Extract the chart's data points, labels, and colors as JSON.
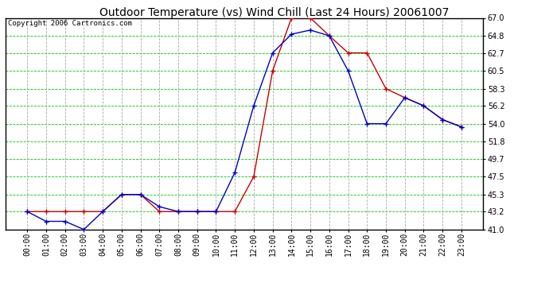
{
  "title": "Outdoor Temperature (vs) Wind Chill (Last 24 Hours) 20061007",
  "copyright": "Copyright 2006 Cartronics.com",
  "x_labels": [
    "00:00",
    "01:00",
    "02:00",
    "03:00",
    "04:00",
    "05:00",
    "06:00",
    "07:00",
    "08:00",
    "09:00",
    "10:00",
    "11:00",
    "12:00",
    "13:00",
    "14:00",
    "15:00",
    "16:00",
    "17:00",
    "18:00",
    "19:00",
    "20:00",
    "21:00",
    "22:00",
    "23:00"
  ],
  "temp": [
    43.2,
    43.2,
    43.2,
    43.2,
    43.2,
    45.3,
    45.3,
    43.2,
    43.2,
    43.2,
    43.2,
    43.2,
    47.5,
    60.5,
    67.0,
    67.0,
    64.8,
    62.7,
    62.7,
    58.3,
    57.2,
    56.2,
    54.5,
    53.6
  ],
  "wind_chill": [
    43.2,
    42.0,
    42.0,
    41.0,
    43.2,
    45.3,
    45.3,
    43.8,
    43.2,
    43.2,
    43.2,
    48.0,
    56.2,
    62.7,
    65.0,
    65.5,
    64.8,
    60.5,
    54.0,
    54.0,
    57.2,
    56.2,
    54.5,
    53.6
  ],
  "ylim": [
    41.0,
    67.0
  ],
  "yticks": [
    41.0,
    43.2,
    45.3,
    47.5,
    49.7,
    51.8,
    54.0,
    56.2,
    58.3,
    60.5,
    62.7,
    64.8,
    67.0
  ],
  "bg_color": "#ffffff",
  "plot_bg": "#ffffff",
  "grid_h_color": "#00cc00",
  "grid_v_color": "#aaaaaa",
  "temp_color": "#cc0000",
  "wind_chill_color": "#0000cc",
  "title_color": "#000000",
  "tick_label_color": "#000000",
  "title_fontsize": 10,
  "axis_label_fontsize": 7,
  "copyright_fontsize": 6.5
}
